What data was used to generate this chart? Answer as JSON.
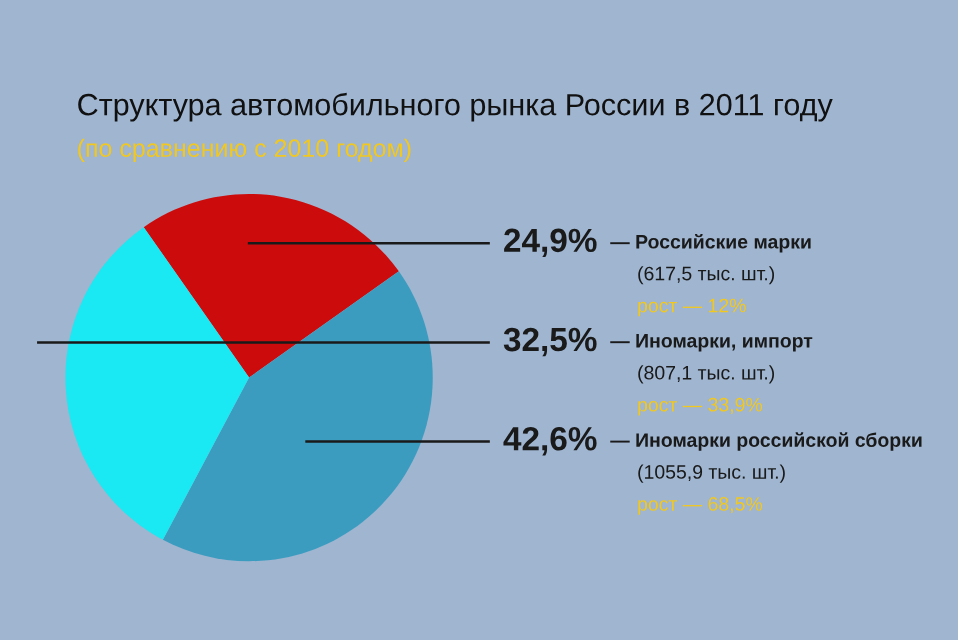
{
  "chart_data": {
    "type": "pie",
    "title": "Структура автомобильного рынка России в 2011 году",
    "subtitle": "(по сравнению с 2010 годом)",
    "categories": [
      "Российские марки\n(617,5 тыс. шт.)",
      "Иномарки российской сборки\n(1055,9 тыс. шт.)",
      "Иномарки, импорт\n(807,1 тыс. шт.)"
    ],
    "values": [
      24.9,
      42.6,
      32.5
    ],
    "value_labels": [
      "24,9% —",
      "42,6% —",
      "32,5% —"
    ],
    "colors": [
      "#cc0c0c",
      "#3b9cc0",
      "#1ae8f2"
    ],
    "annotations": [
      "рост — 12%",
      "рост — 68,5%",
      "рост — 33,9%"
    ]
  }
}
